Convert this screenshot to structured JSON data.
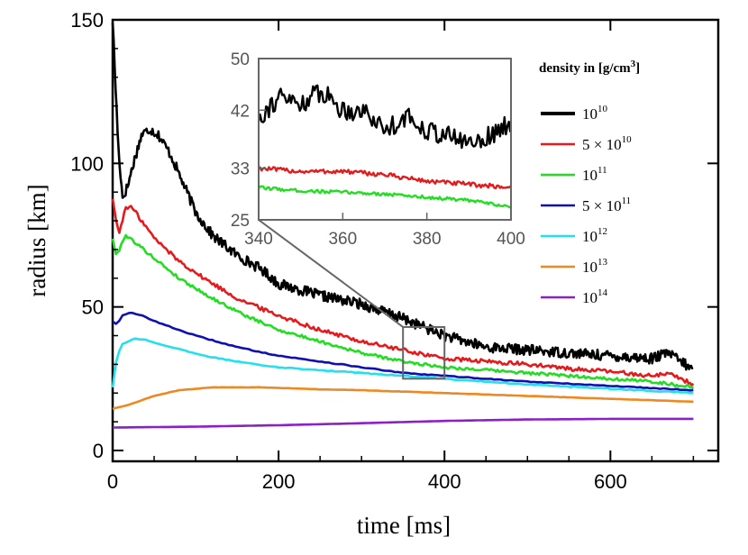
{
  "chart_data": {
    "type": "line",
    "title": "",
    "xlabel": "time [ms]",
    "ylabel": "radius [km]",
    "xlim": [
      0,
      730
    ],
    "ylim": [
      0,
      150
    ],
    "xticks": [
      "0",
      "200",
      "400",
      "600"
    ],
    "yticks": [
      "0",
      "50",
      "100",
      "150"
    ],
    "legend": {
      "title": "density in [g/cm³]",
      "title_parts": {
        "prefix": "density in [g/cm",
        "sup": "3",
        "suffix": "]"
      },
      "placement": "right",
      "entries": [
        {
          "label": "10¹⁰",
          "base": "10",
          "exp": "10",
          "prefix": "",
          "color": "#000000"
        },
        {
          "label": "5 × 10¹⁰",
          "base": "10",
          "exp": "10",
          "prefix": "5 × ",
          "color": "#e41a1c"
        },
        {
          "label": "10¹¹",
          "base": "10",
          "exp": "11",
          "prefix": "",
          "color": "#22dd22"
        },
        {
          "label": "5 × 10¹¹",
          "base": "10",
          "exp": "11",
          "prefix": "5 × ",
          "color": "#1010b0"
        },
        {
          "label": "10¹²",
          "base": "10",
          "exp": "12",
          "prefix": "",
          "color": "#22e0ee"
        },
        {
          "label": "10¹³",
          "base": "10",
          "exp": "13",
          "prefix": "",
          "color": "#ee8822"
        },
        {
          "label": "10¹⁴",
          "base": "10",
          "exp": "14",
          "prefix": "",
          "color": "#8a20c8"
        }
      ]
    },
    "series": [
      {
        "name": "10^10",
        "color": "#000000",
        "noise": 1.8,
        "points": [
          [
            0,
            150
          ],
          [
            3,
            130
          ],
          [
            7,
            105
          ],
          [
            12,
            88
          ],
          [
            18,
            92
          ],
          [
            25,
            100
          ],
          [
            35,
            110
          ],
          [
            45,
            112
          ],
          [
            55,
            110
          ],
          [
            70,
            103
          ],
          [
            85,
            93
          ],
          [
            100,
            83
          ],
          [
            120,
            75
          ],
          [
            150,
            68
          ],
          [
            180,
            63
          ],
          [
            200,
            58
          ],
          [
            250,
            54
          ],
          [
            300,
            51
          ],
          [
            350,
            46
          ],
          [
            400,
            40
          ],
          [
            450,
            36
          ],
          [
            500,
            35
          ],
          [
            550,
            34
          ],
          [
            600,
            33
          ],
          [
            650,
            32
          ],
          [
            670,
            34
          ],
          [
            700,
            28
          ]
        ]
      },
      {
        "name": "5x10^10",
        "color": "#e41a1c",
        "noise": 0.7,
        "points": [
          [
            0,
            88
          ],
          [
            4,
            80
          ],
          [
            8,
            76
          ],
          [
            15,
            84
          ],
          [
            22,
            85
          ],
          [
            30,
            82
          ],
          [
            50,
            74
          ],
          [
            80,
            66
          ],
          [
            110,
            60
          ],
          [
            150,
            53
          ],
          [
            200,
            47
          ],
          [
            250,
            42
          ],
          [
            300,
            38
          ],
          [
            350,
            35
          ],
          [
            400,
            32
          ],
          [
            450,
            31
          ],
          [
            500,
            30
          ],
          [
            550,
            28.5
          ],
          [
            600,
            27.5
          ],
          [
            650,
            26
          ],
          [
            670,
            27
          ],
          [
            700,
            23
          ]
        ]
      },
      {
        "name": "10^11",
        "color": "#22dd22",
        "noise": 0.5,
        "points": [
          [
            0,
            74
          ],
          [
            4,
            68
          ],
          [
            8,
            70
          ],
          [
            15,
            75
          ],
          [
            25,
            73
          ],
          [
            50,
            67
          ],
          [
            80,
            60
          ],
          [
            120,
            53
          ],
          [
            160,
            47
          ],
          [
            200,
            42
          ],
          [
            250,
            38
          ],
          [
            300,
            34
          ],
          [
            350,
            31
          ],
          [
            400,
            29
          ],
          [
            450,
            28
          ],
          [
            500,
            27
          ],
          [
            550,
            26
          ],
          [
            600,
            25
          ],
          [
            650,
            24
          ],
          [
            700,
            22
          ]
        ]
      },
      {
        "name": "5x10^11",
        "color": "#1010b0",
        "noise": 0.15,
        "points": [
          [
            0,
            45
          ],
          [
            5,
            44
          ],
          [
            12,
            47
          ],
          [
            22,
            48
          ],
          [
            35,
            47
          ],
          [
            60,
            44
          ],
          [
            100,
            40
          ],
          [
            150,
            36
          ],
          [
            200,
            33
          ],
          [
            250,
            31
          ],
          [
            300,
            29
          ],
          [
            350,
            27
          ],
          [
            400,
            26
          ],
          [
            450,
            25
          ],
          [
            500,
            24
          ],
          [
            600,
            22.5
          ],
          [
            700,
            21
          ]
        ]
      },
      {
        "name": "10^12",
        "color": "#22e0ee",
        "noise": 0.15,
        "points": [
          [
            0,
            22
          ],
          [
            5,
            33
          ],
          [
            12,
            37
          ],
          [
            25,
            39
          ],
          [
            40,
            38.5
          ],
          [
            70,
            36
          ],
          [
            110,
            33
          ],
          [
            150,
            31
          ],
          [
            200,
            29
          ],
          [
            250,
            28
          ],
          [
            300,
            27
          ],
          [
            350,
            26
          ],
          [
            400,
            25
          ],
          [
            450,
            24
          ],
          [
            500,
            23
          ],
          [
            600,
            21.5
          ],
          [
            700,
            20
          ]
        ]
      },
      {
        "name": "10^13",
        "color": "#ee8822",
        "noise": 0.05,
        "points": [
          [
            0,
            14.5
          ],
          [
            20,
            16
          ],
          [
            50,
            19
          ],
          [
            80,
            21
          ],
          [
            120,
            22
          ],
          [
            180,
            22
          ],
          [
            250,
            21.3
          ],
          [
            300,
            21
          ],
          [
            350,
            20.5
          ],
          [
            400,
            20
          ],
          [
            450,
            19.5
          ],
          [
            500,
            19
          ],
          [
            600,
            18
          ],
          [
            700,
            17
          ]
        ]
      },
      {
        "name": "10^14",
        "color": "#8a20c8",
        "noise": 0.0,
        "points": [
          [
            0,
            8
          ],
          [
            100,
            8.3
          ],
          [
            200,
            8.8
          ],
          [
            300,
            9.5
          ],
          [
            400,
            10.3
          ],
          [
            500,
            10.8
          ],
          [
            600,
            11
          ],
          [
            700,
            11
          ]
        ]
      }
    ],
    "inset": {
      "xlim": [
        340,
        400
      ],
      "ylim": [
        25,
        50
      ],
      "xticks": [
        "340",
        "360",
        "380",
        "400"
      ],
      "yticks": [
        "25",
        "33",
        "42",
        "50"
      ],
      "zoom_box": {
        "x": [
          350,
          400
        ],
        "y": [
          25,
          43
        ]
      },
      "series": [
        {
          "name": "10^10",
          "color": "#000000",
          "noise": 1.6,
          "points": [
            [
              340,
              41
            ],
            [
              345,
              44
            ],
            [
              350,
              43
            ],
            [
              355,
              45
            ],
            [
              360,
              42
            ],
            [
              365,
              42
            ],
            [
              370,
              39
            ],
            [
              375,
              41
            ],
            [
              380,
              39
            ],
            [
              385,
              38
            ],
            [
              390,
              37
            ],
            [
              395,
              38
            ],
            [
              400,
              40
            ]
          ]
        },
        {
          "name": "5x10^10",
          "color": "#e41a1c",
          "noise": 0.35,
          "points": [
            [
              340,
              33
            ],
            [
              350,
              32.5
            ],
            [
              360,
              32.5
            ],
            [
              370,
              32
            ],
            [
              380,
              31
            ],
            [
              390,
              30.5
            ],
            [
              400,
              30
            ]
          ]
        },
        {
          "name": "10^11",
          "color": "#22dd22",
          "noise": 0.25,
          "points": [
            [
              340,
              30
            ],
            [
              350,
              29.5
            ],
            [
              360,
              29.3
            ],
            [
              370,
              29
            ],
            [
              380,
              28.5
            ],
            [
              390,
              28
            ],
            [
              400,
              27
            ]
          ]
        }
      ]
    }
  }
}
